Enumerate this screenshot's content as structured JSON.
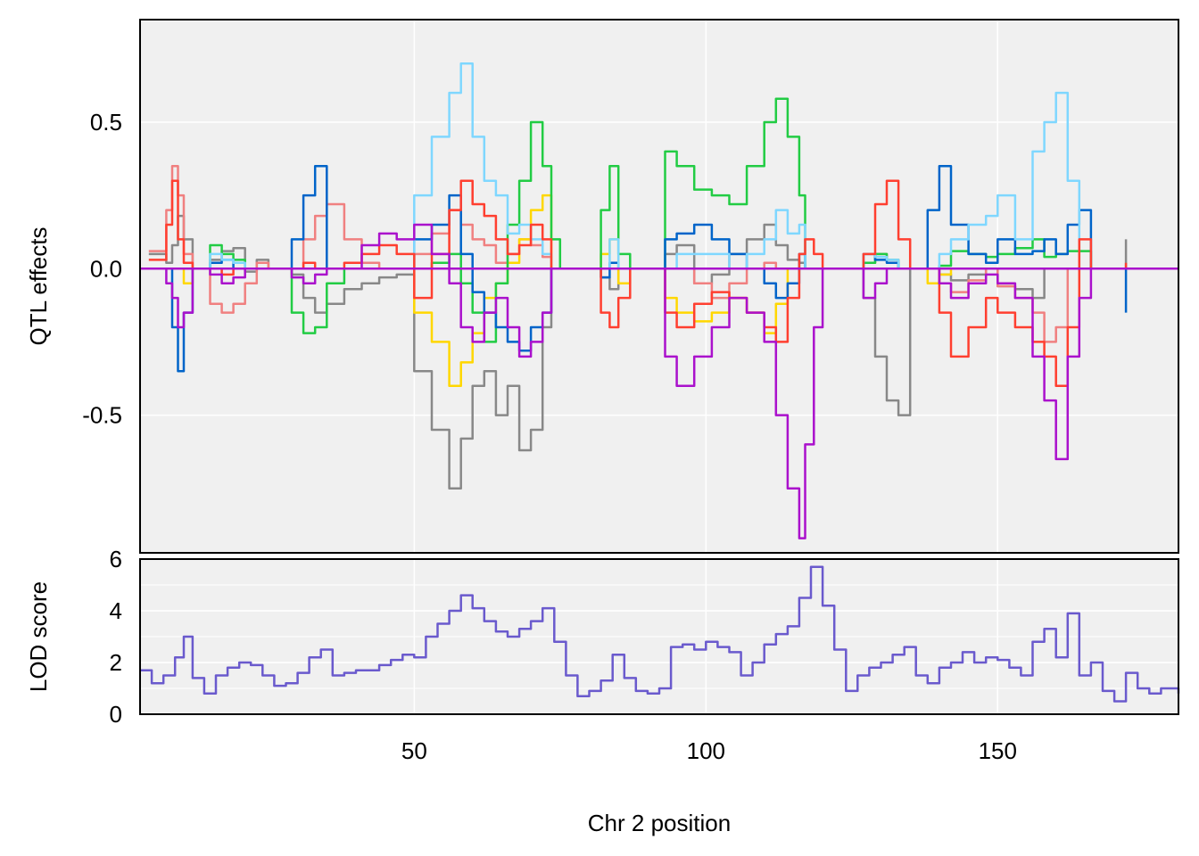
{
  "chart_data": [
    {
      "type": "line",
      "panel": "effects",
      "ylabel": "QTL effects",
      "xlim": [
        3,
        181
      ],
      "ylim": [
        -0.97,
        0.85
      ],
      "y_ticks": [
        0.5,
        0.0,
        -0.5
      ],
      "y_tick_labels": [
        "0.5",
        "0.0",
        "-0.5"
      ],
      "grid": true,
      "colors": [
        "#888888",
        "#F08080",
        "#FFD700",
        "#22CC44",
        "#0064C9",
        "#7FD7FF",
        "#FF3F30",
        "#AA11CC"
      ],
      "x": [
        4.5,
        7.5,
        8.5,
        9.5,
        10.5,
        12,
        15,
        17,
        19,
        21,
        23,
        25,
        27,
        29,
        31,
        33,
        35,
        38,
        41,
        44,
        47,
        50,
        53,
        56,
        58,
        60,
        62,
        64,
        66,
        68,
        70,
        72,
        73.5,
        75,
        77,
        79,
        80.5,
        82,
        83.5,
        85,
        87,
        90,
        93,
        95,
        98,
        101,
        104,
        107,
        110,
        112,
        114,
        116,
        117,
        118.5,
        120,
        123,
        125,
        127,
        129,
        131,
        133,
        135,
        138,
        140,
        142,
        145,
        148,
        150,
        153,
        156,
        158,
        160,
        162,
        164,
        166,
        169,
        172
      ],
      "series": [
        {
          "values": [
            0.05,
            0.02,
            0.08,
            0.18,
            0.1,
            0,
            0.03,
            0.06,
            0.07,
            -0.01,
            0.03,
            0,
            0,
            -0.02,
            -0.1,
            -0.15,
            -0.12,
            -0.07,
            -0.05,
            -0.03,
            -0.02,
            -0.35,
            -0.55,
            -0.75,
            -0.58,
            -0.4,
            -0.35,
            -0.5,
            -0.4,
            -0.62,
            -0.55,
            -0.2,
            0,
            0,
            0,
            0,
            0,
            -0.03,
            -0.07,
            0,
            0,
            0,
            0.05,
            0.08,
            -0.05,
            -0.02,
            0.05,
            0.1,
            0.15,
            0.08,
            0.03,
            0.02,
            0,
            0,
            0,
            0,
            0,
            -0.1,
            -0.3,
            -0.45,
            -0.5,
            0,
            0,
            -0.02,
            -0.04,
            -0.02,
            0,
            -0.06,
            -0.07,
            -0.1,
            0,
            0,
            0,
            0,
            0,
            0,
            0.1
          ]
        },
        {
          "values": [
            0.06,
            0.2,
            0.35,
            0.25,
            0.05,
            0,
            -0.12,
            -0.15,
            -0.12,
            -0.05,
            0.02,
            0,
            0,
            0,
            0.1,
            0.18,
            0.22,
            0.1,
            0.02,
            0,
            0,
            0.05,
            0.12,
            0.2,
            0.15,
            0.1,
            0.08,
            0.02,
            0.05,
            0.1,
            0.08,
            0.04,
            0,
            0,
            0,
            0,
            0,
            0,
            0,
            0,
            0,
            0,
            0,
            0,
            -0.05,
            -0.1,
            -0.05,
            0,
            0.02,
            0,
            0,
            0,
            0,
            0,
            0,
            0,
            0,
            0.02,
            0.05,
            0.03,
            0,
            0,
            0,
            -0.05,
            -0.08,
            -0.04,
            0,
            -0.06,
            -0.1,
            -0.15,
            -0.25,
            -0.2,
            0,
            0,
            0,
            0,
            0
          ]
        },
        {
          "values": [
            0,
            0,
            0,
            0,
            -0.05,
            0,
            0,
            0,
            0,
            0,
            0,
            0,
            0,
            0,
            0,
            0,
            0,
            0,
            0,
            0,
            0,
            -0.15,
            -0.25,
            -0.4,
            -0.32,
            -0.22,
            -0.1,
            -0.05,
            0.02,
            0.1,
            0.2,
            0.25,
            0,
            0,
            0,
            0,
            0,
            0.05,
            0.1,
            -0.05,
            0,
            0,
            -0.1,
            -0.15,
            -0.18,
            -0.15,
            -0.1,
            -0.15,
            -0.22,
            -0.12,
            0,
            0,
            0,
            0,
            0,
            0,
            0,
            0,
            0,
            0,
            0,
            0,
            -0.05,
            -0.02,
            0,
            0,
            0,
            0,
            0,
            0,
            0,
            0,
            0,
            0,
            0,
            0,
            0
          ]
        },
        {
          "values": [
            0,
            0,
            0,
            0,
            0,
            0,
            0.08,
            0.05,
            0.03,
            0,
            0,
            0,
            0,
            -0.15,
            -0.22,
            -0.2,
            -0.05,
            0,
            0,
            0,
            0,
            0,
            0.02,
            0.05,
            -0.05,
            -0.15,
            -0.25,
            -0.05,
            0.15,
            0.3,
            0.5,
            0.35,
            0.1,
            0,
            0,
            0,
            0,
            0.2,
            0.35,
            0.05,
            0,
            0,
            0.4,
            0.35,
            0.27,
            0.25,
            0.22,
            0.35,
            0.5,
            0.58,
            0.45,
            0.25,
            0,
            0,
            0,
            0,
            0,
            0.02,
            0.05,
            0.03,
            0,
            0,
            0,
            0.01,
            0.06,
            0.05,
            0.04,
            0.05,
            0.07,
            0.1,
            0.04,
            0.05,
            0.06,
            0.06,
            0,
            0,
            0
          ]
        },
        {
          "values": [
            0,
            0,
            -0.2,
            -0.35,
            -0.15,
            0,
            0.02,
            0.03,
            0,
            0,
            0,
            0,
            0,
            0.1,
            0.25,
            0.35,
            0,
            0,
            0,
            0,
            0,
            0.1,
            0.15,
            0.25,
            0.05,
            -0.08,
            -0.15,
            -0.2,
            -0.25,
            -0.28,
            -0.2,
            -0.15,
            0,
            0,
            0,
            0,
            0,
            -0.03,
            0.02,
            0,
            0,
            0,
            0.1,
            0.12,
            0.15,
            0.1,
            0.05,
            0,
            -0.05,
            -0.1,
            -0.05,
            0.05,
            0,
            0,
            0,
            0,
            0,
            0.05,
            0.03,
            0.02,
            0,
            0,
            0.2,
            0.35,
            0.15,
            0.05,
            0.02,
            0.1,
            0.05,
            0.06,
            0.1,
            0.05,
            0.15,
            0.2,
            0,
            0,
            -0.15
          ]
        },
        {
          "values": [
            0,
            0,
            0,
            0,
            0,
            0,
            0.05,
            0.03,
            0.02,
            0,
            0,
            0,
            0,
            0,
            0,
            0,
            0,
            0,
            0,
            0,
            0,
            0.25,
            0.45,
            0.6,
            0.7,
            0.45,
            0.3,
            0.25,
            0.12,
            0.15,
            0.1,
            0.05,
            0,
            0,
            0,
            0,
            0,
            0,
            0.1,
            0,
            0,
            0,
            0,
            0.05,
            0.05,
            0.05,
            0,
            0.05,
            0.1,
            0.2,
            0.12,
            0.15,
            0,
            0,
            0,
            0,
            0,
            0.05,
            0.04,
            0.03,
            0,
            0,
            0,
            0.05,
            0.1,
            0.15,
            0.18,
            0.25,
            0.1,
            0.4,
            0.5,
            0.6,
            0.3,
            0,
            0,
            0,
            0
          ]
        },
        {
          "values": [
            0.03,
            0.15,
            0.3,
            0.1,
            0.02,
            0,
            0,
            -0.02,
            0,
            0,
            0,
            0,
            0,
            0,
            0.02,
            0,
            0,
            0.02,
            0.05,
            0.08,
            0.05,
            -0.1,
            0.05,
            0.2,
            0.3,
            0.22,
            0.18,
            0.1,
            0.05,
            0.08,
            0.15,
            0.1,
            0,
            0,
            0,
            0,
            0,
            -0.15,
            -0.2,
            -0.1,
            0,
            0,
            -0.15,
            -0.2,
            -0.12,
            -0.08,
            -0.1,
            -0.15,
            -0.2,
            -0.25,
            -0.1,
            0.05,
            0.1,
            0.05,
            0,
            0,
            0,
            0.05,
            0.22,
            0.3,
            0.1,
            0,
            0,
            -0.15,
            -0.3,
            -0.2,
            -0.1,
            -0.15,
            -0.2,
            -0.25,
            -0.3,
            -0.4,
            -0.2,
            0.1,
            0,
            0,
            0.02
          ]
        },
        {
          "values": [
            0,
            -0.05,
            -0.1,
            -0.2,
            -0.15,
            0,
            -0.02,
            -0.05,
            -0.03,
            0,
            0,
            0,
            0,
            -0.03,
            -0.05,
            -0.02,
            0,
            0,
            0.08,
            0.12,
            0.1,
            0.15,
            0.05,
            -0.05,
            -0.2,
            -0.25,
            -0.15,
            -0.1,
            -0.2,
            -0.3,
            -0.25,
            -0.15,
            0,
            0,
            0,
            0,
            0,
            0,
            0,
            0,
            0,
            0,
            -0.3,
            -0.4,
            -0.3,
            -0.2,
            -0.1,
            -0.15,
            -0.25,
            -0.5,
            -0.75,
            -0.92,
            -0.6,
            -0.2,
            0,
            0,
            0,
            -0.1,
            -0.05,
            0,
            0,
            0,
            0,
            -0.05,
            -0.1,
            -0.05,
            -0.02,
            -0.05,
            -0.1,
            -0.3,
            -0.45,
            -0.65,
            -0.3,
            -0.1,
            0,
            0,
            0
          ]
        }
      ]
    },
    {
      "type": "line",
      "panel": "lod",
      "xlabel": "Chr 2 position",
      "ylabel": "LOD score",
      "xlim": [
        3,
        181
      ],
      "ylim": [
        0,
        6
      ],
      "x_ticks": [
        50,
        100,
        150
      ],
      "x_tick_labels": [
        "50",
        "100",
        "150"
      ],
      "y_ticks": [
        0,
        2,
        4,
        6
      ],
      "y_tick_labels": [
        "0",
        "2",
        "4",
        "6"
      ],
      "grid": true,
      "color": "#6A5ACD",
      "x": [
        3,
        5,
        7,
        9,
        10.5,
        12,
        14,
        16,
        18,
        20,
        22,
        24,
        26,
        28,
        30,
        32,
        34,
        36,
        38,
        40,
        42,
        44,
        46,
        48,
        50,
        52,
        54,
        56,
        58,
        60,
        62,
        64,
        66,
        68,
        70,
        72,
        74,
        76,
        78,
        80,
        82,
        84,
        86,
        88,
        90,
        92,
        94,
        96,
        98,
        100,
        102,
        104,
        106,
        108,
        110,
        112,
        114,
        116,
        118,
        120,
        122,
        124,
        126,
        128,
        130,
        132,
        134,
        136,
        138,
        140,
        142,
        144,
        146,
        148,
        150,
        152,
        154,
        156,
        158,
        160,
        162,
        164,
        166,
        168,
        170,
        172,
        174,
        176,
        178,
        180,
        181
      ],
      "values": [
        1.7,
        1.2,
        1.5,
        2.2,
        3.0,
        1.4,
        0.8,
        1.5,
        1.8,
        2.0,
        1.9,
        1.5,
        1.1,
        1.2,
        1.6,
        2.2,
        2.5,
        1.5,
        1.6,
        1.7,
        1.7,
        1.9,
        2.1,
        2.3,
        2.2,
        3.0,
        3.5,
        4.0,
        4.6,
        4.1,
        3.6,
        3.2,
        3.0,
        3.3,
        3.6,
        4.1,
        2.8,
        1.5,
        0.7,
        0.9,
        1.3,
        2.3,
        1.4,
        0.9,
        0.8,
        1.0,
        2.6,
        2.7,
        2.5,
        2.8,
        2.6,
        2.4,
        1.5,
        2.0,
        2.7,
        3.1,
        3.4,
        4.5,
        5.7,
        4.2,
        2.5,
        0.9,
        1.5,
        1.8,
        2.0,
        2.3,
        2.6,
        1.5,
        1.2,
        1.8,
        2.0,
        2.4,
        2.0,
        2.2,
        2.1,
        1.8,
        1.5,
        2.8,
        3.3,
        2.2,
        3.9,
        1.5,
        2.0,
        0.9,
        0.5,
        1.6,
        1.0,
        0.8,
        1.0,
        1.0,
        0.8
      ]
    }
  ]
}
